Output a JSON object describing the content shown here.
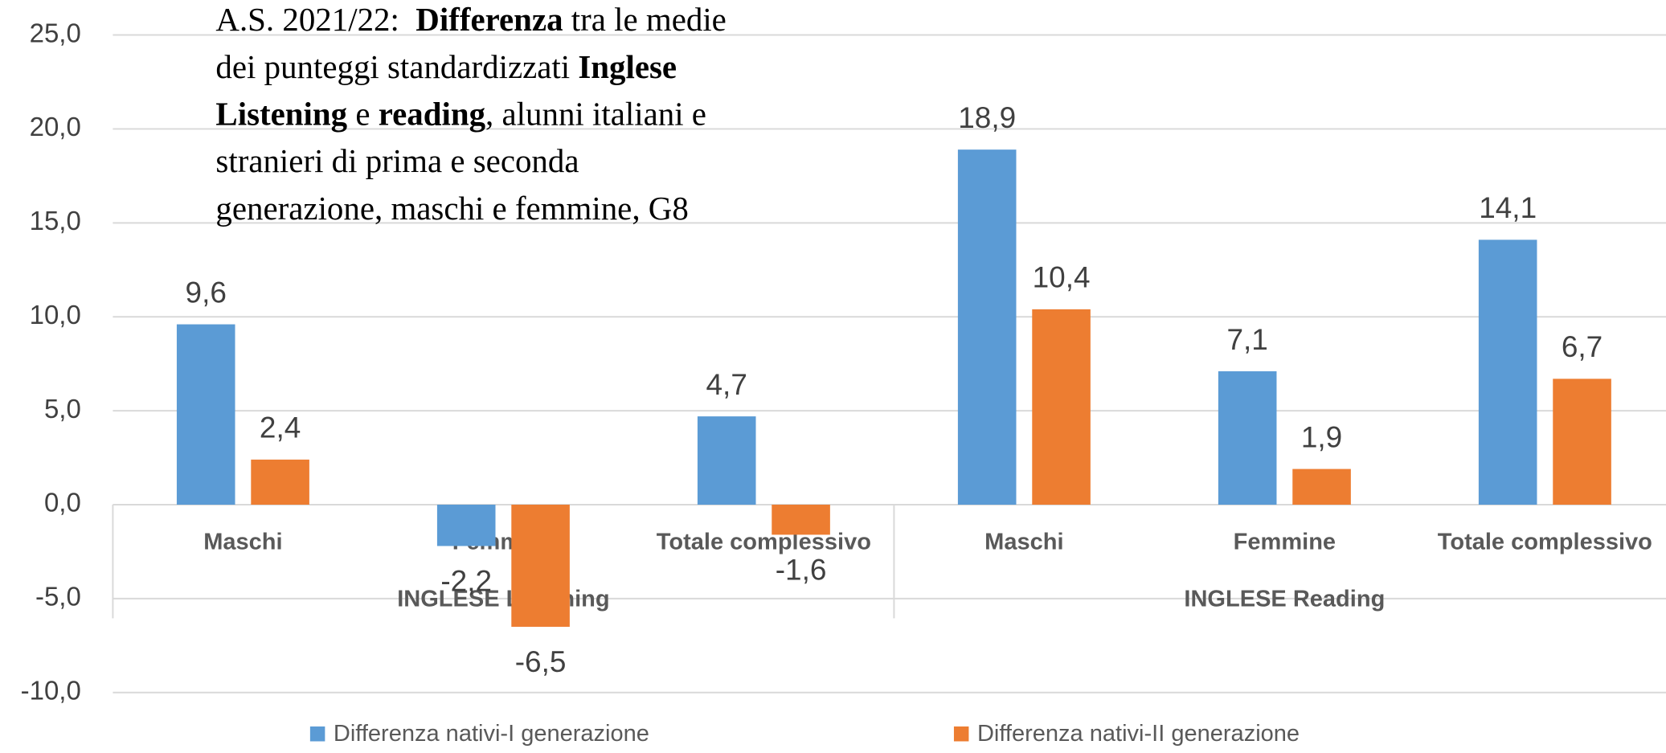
{
  "chart_data": {
    "type": "bar",
    "title_lines": [
      [
        {
          "text": "A.S. 2021/22:  ",
          "bold": false
        },
        {
          "text": "Differenza",
          "bold": true
        },
        {
          "text": " tra le medie",
          "bold": false
        }
      ],
      [
        {
          "text": "dei punteggi standardizzati ",
          "bold": false
        },
        {
          "text": "Inglese",
          "bold": true
        }
      ],
      [
        {
          "text": "Listening",
          "bold": true
        },
        {
          "text": " e ",
          "bold": false
        },
        {
          "text": "reading",
          "bold": true
        },
        {
          "text": ", alunni italiani e",
          "bold": false
        }
      ],
      [
        {
          "text": "stranieri di prima e seconda",
          "bold": false
        }
      ],
      [
        {
          "text": "generazione, maschi e femmine, G8",
          "bold": false
        }
      ]
    ],
    "categories": [
      "Maschi",
      "Femmine",
      "Totale complessivo",
      "Maschi",
      "Femmine",
      "Totale complessivo"
    ],
    "groups": [
      {
        "name": "INGLESE Listening",
        "size": 3
      },
      {
        "name": "INGLESE Reading",
        "size": 3
      }
    ],
    "series": [
      {
        "name": "Differenza nativi-I generazione",
        "color": "#5b9bd5",
        "values": [
          9.6,
          -2.2,
          4.7,
          18.9,
          7.1,
          14.1
        ],
        "value_labels": [
          "9,6",
          "-2,2",
          "4,7",
          "18,9",
          "7,1",
          "14,1"
        ]
      },
      {
        "name": "Differenza nativi-II generazione",
        "color": "#ed7d31",
        "values": [
          2.4,
          -6.5,
          -1.6,
          10.4,
          1.9,
          6.7
        ],
        "value_labels": [
          "2,4",
          "-6,5",
          "-1,6",
          "10,4",
          "1,9",
          "6,7"
        ]
      }
    ],
    "ylim": [
      -10,
      25
    ],
    "yticks": [
      {
        "value": -10,
        "label": "-10,0"
      },
      {
        "value": -5,
        "label": "-5,0"
      },
      {
        "value": 0,
        "label": "0,0"
      },
      {
        "value": 5,
        "label": "5,0"
      },
      {
        "value": 10,
        "label": "10,0"
      },
      {
        "value": 15,
        "label": "15,0"
      },
      {
        "value": 20,
        "label": "20,0"
      },
      {
        "value": 25,
        "label": "25,0"
      }
    ],
    "grid": true,
    "legend": "bottom"
  }
}
